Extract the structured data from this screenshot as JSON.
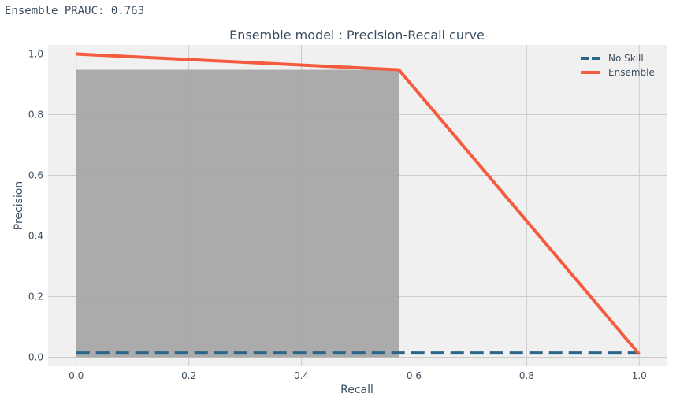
{
  "output": {
    "prauc_text": "Ensemble PRAUC: 0.763"
  },
  "chart_data": {
    "type": "line",
    "title": "Ensemble model : Precision-Recall curve",
    "xlabel": "Recall",
    "ylabel": "Precision",
    "xlim": [
      -0.05,
      1.05
    ],
    "ylim": [
      -0.03,
      1.03
    ],
    "xticks": [
      0.0,
      0.2,
      0.4,
      0.6,
      0.8,
      1.0
    ],
    "yticks": [
      0.0,
      0.2,
      0.4,
      0.6,
      0.8,
      1.0
    ],
    "xtick_labels": [
      "0.0",
      "0.2",
      "0.4",
      "0.6",
      "0.8",
      "1.0"
    ],
    "ytick_labels": [
      "0.0",
      "0.2",
      "0.4",
      "0.6",
      "0.8",
      "1.0"
    ],
    "grid": true,
    "legend": "top-right",
    "fill_area": {
      "x_start": 0.0,
      "x_end": 0.573,
      "y_top": 0.948,
      "color": "#a5a6a5"
    },
    "series": [
      {
        "name": "No Skill",
        "style": "dashed",
        "color": "#2b6589",
        "x": [
          0.0,
          1.0
        ],
        "y": [
          0.014,
          0.014
        ]
      },
      {
        "name": "Ensemble",
        "style": "solid",
        "color": "#f45b3f",
        "x": [
          0.0,
          0.573,
          1.0
        ],
        "y": [
          1.0,
          0.948,
          0.01
        ]
      }
    ]
  }
}
